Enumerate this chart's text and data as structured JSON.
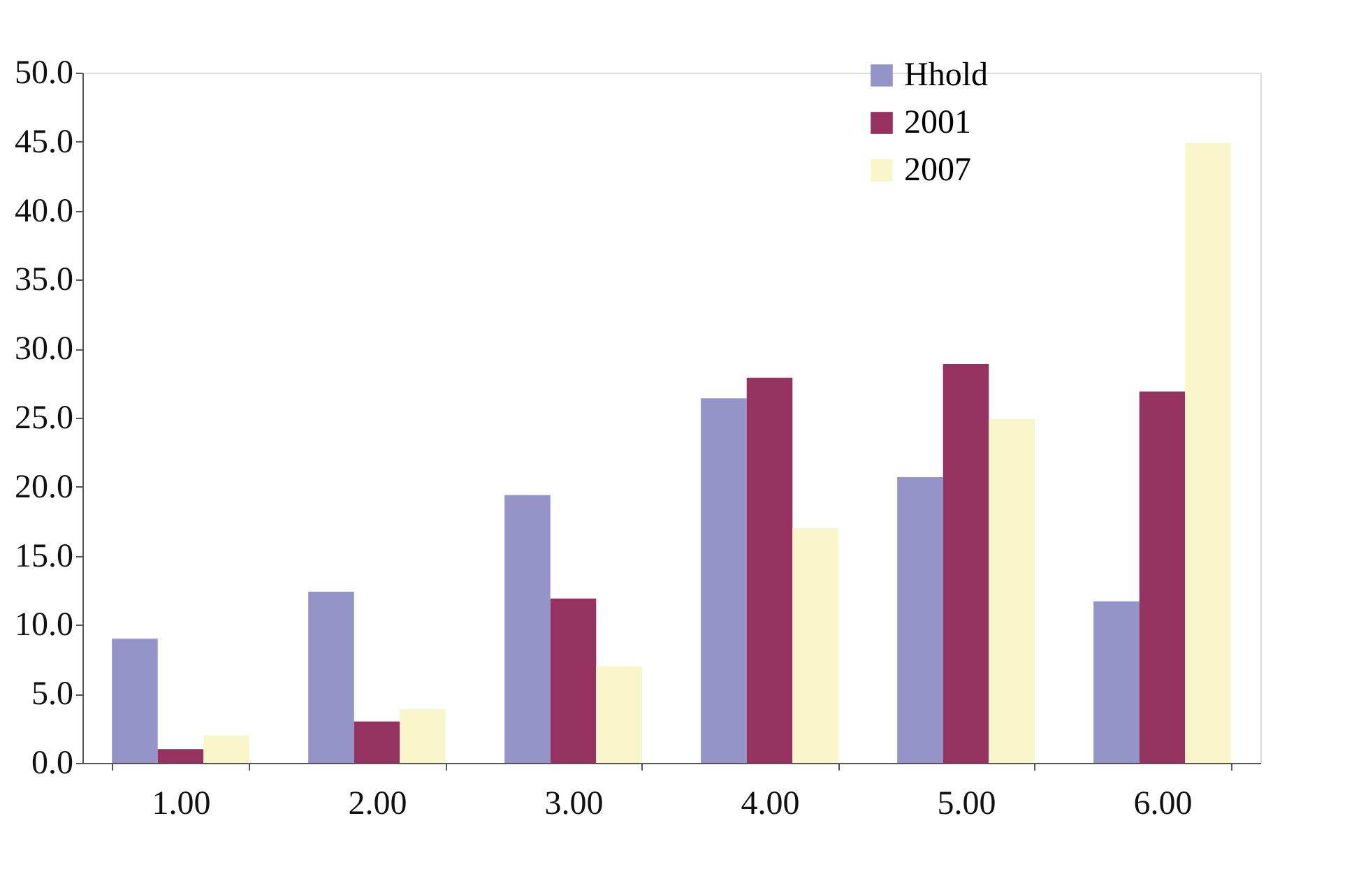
{
  "chart_data": {
    "type": "bar",
    "categories": [
      "1.00",
      "2.00",
      "3.00",
      "4.00",
      "5.00",
      "6.00"
    ],
    "series": [
      {
        "name": "Hhold",
        "color": "#9494c8",
        "values": [
          9.0,
          12.4,
          19.4,
          26.4,
          20.7,
          11.7
        ]
      },
      {
        "name": "2001",
        "color": "#96325f",
        "values": [
          1.0,
          3.0,
          11.9,
          27.9,
          28.9,
          26.9
        ]
      },
      {
        "name": "2007",
        "color": "#faf6cb",
        "values": [
          2.0,
          3.9,
          7.0,
          17.0,
          24.9,
          44.9
        ]
      }
    ],
    "ylim": [
      0,
      50
    ],
    "yticks": [
      {
        "value": 0,
        "label": "0.0"
      },
      {
        "value": 5,
        "label": "5.0"
      },
      {
        "value": 10,
        "label": "10.0"
      },
      {
        "value": 15,
        "label": "15.0"
      },
      {
        "value": 20,
        "label": "20.0"
      },
      {
        "value": 25,
        "label": "25.0"
      },
      {
        "value": 30,
        "label": "30.0"
      },
      {
        "value": 35,
        "label": "35.0"
      },
      {
        "value": 40,
        "label": "40.0"
      },
      {
        "value": 45,
        "label": "45.0"
      },
      {
        "value": 50,
        "label": "50.0"
      }
    ],
    "grid": false,
    "legend": "top right"
  }
}
